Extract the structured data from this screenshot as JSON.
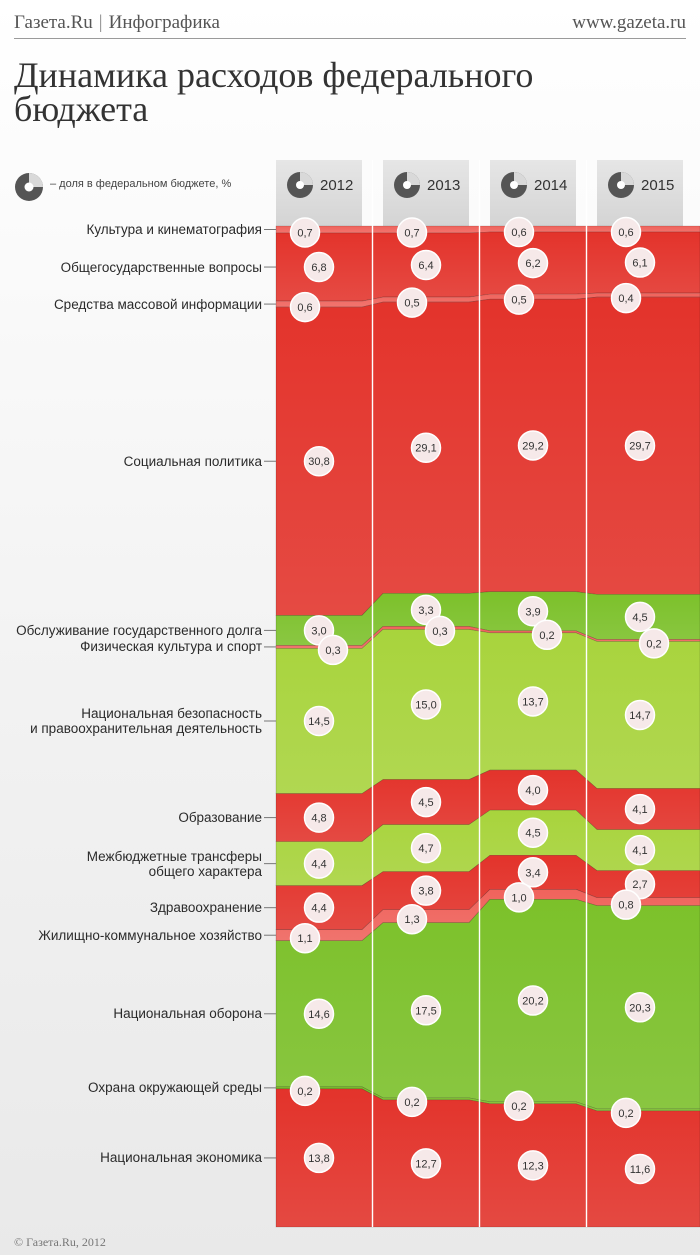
{
  "header": {
    "brand": "Газета.Ru",
    "section": "Инфографика",
    "site": "www.gazeta.ru"
  },
  "title_line1": "Динамика расходов федерального",
  "title_line2": "бюджета",
  "legend_text": "– доля в федеральном бюджете, %",
  "footer": "© Газета.Ru, 2012",
  "colors": {
    "red": "#e3332b",
    "light_red": "#f0635c",
    "green": "#7cc12a",
    "light_green": "#a8d43c"
  },
  "chart_data": {
    "type": "area",
    "stacked": true,
    "unit": "%",
    "x": [
      "2012",
      "2013",
      "2014",
      "2015"
    ],
    "categories": [
      {
        "label": "Культура и кинематография",
        "values": [
          "0,7",
          "0,7",
          "0,6",
          "0,6"
        ],
        "color": "light_red"
      },
      {
        "label": "Общегосударственные вопросы",
        "values": [
          "6,8",
          "6,4",
          "6,2",
          "6,1"
        ],
        "color": "red"
      },
      {
        "label": "Средства массовой информации",
        "values": [
          "0,6",
          "0,5",
          "0,5",
          "0,4"
        ],
        "color": "light_red"
      },
      {
        "label": "Социальная политика",
        "values": [
          "30,8",
          "29,1",
          "29,2",
          "29,7"
        ],
        "color": "red"
      },
      {
        "label": "Обслуживание государственного долга",
        "values": [
          "3,0",
          "3,3",
          "3,9",
          "4,5"
        ],
        "color": "green"
      },
      {
        "label": "Физическая культура и спорт",
        "values": [
          "0,3",
          "0,3",
          "0,2",
          "0,2"
        ],
        "color": "light_red"
      },
      {
        "label": "Национальная безопасность и правоохранительная деятельность",
        "label_lines": [
          "Национальная безопасность",
          "и правоохранительная деятельность"
        ],
        "values": [
          "14,5",
          "15,0",
          "13,7",
          "14,7"
        ],
        "color": "light_green"
      },
      {
        "label": "Образование",
        "values": [
          "4,8",
          "4,5",
          "4,0",
          "4,1"
        ],
        "color": "red"
      },
      {
        "label": "Межбюджетные трансферы общего характера",
        "label_lines": [
          "Межбюджетные трансферы",
          "общего характера"
        ],
        "values": [
          "4,4",
          "4,7",
          "4,5",
          "4,1"
        ],
        "color": "light_green"
      },
      {
        "label": "Здравоохранение",
        "values": [
          "4,4",
          "3,8",
          "3,4",
          "2,7"
        ],
        "color": "red"
      },
      {
        "label": "Жилищно-коммунальное хозяйство",
        "values": [
          "1,1",
          "1,3",
          "1,0",
          "0,8"
        ],
        "color": "light_red"
      },
      {
        "label": "Национальная оборона",
        "values": [
          "14,6",
          "17,5",
          "20,2",
          "20,3"
        ],
        "color": "green"
      },
      {
        "label": "Охрана окружающей среды",
        "values": [
          "0,2",
          "0,2",
          "0,2",
          "0,2"
        ],
        "color": "green"
      },
      {
        "label": "Национальная экономика",
        "values": [
          "13,8",
          "12,7",
          "12,3",
          "11,6"
        ],
        "color": "red"
      }
    ]
  }
}
